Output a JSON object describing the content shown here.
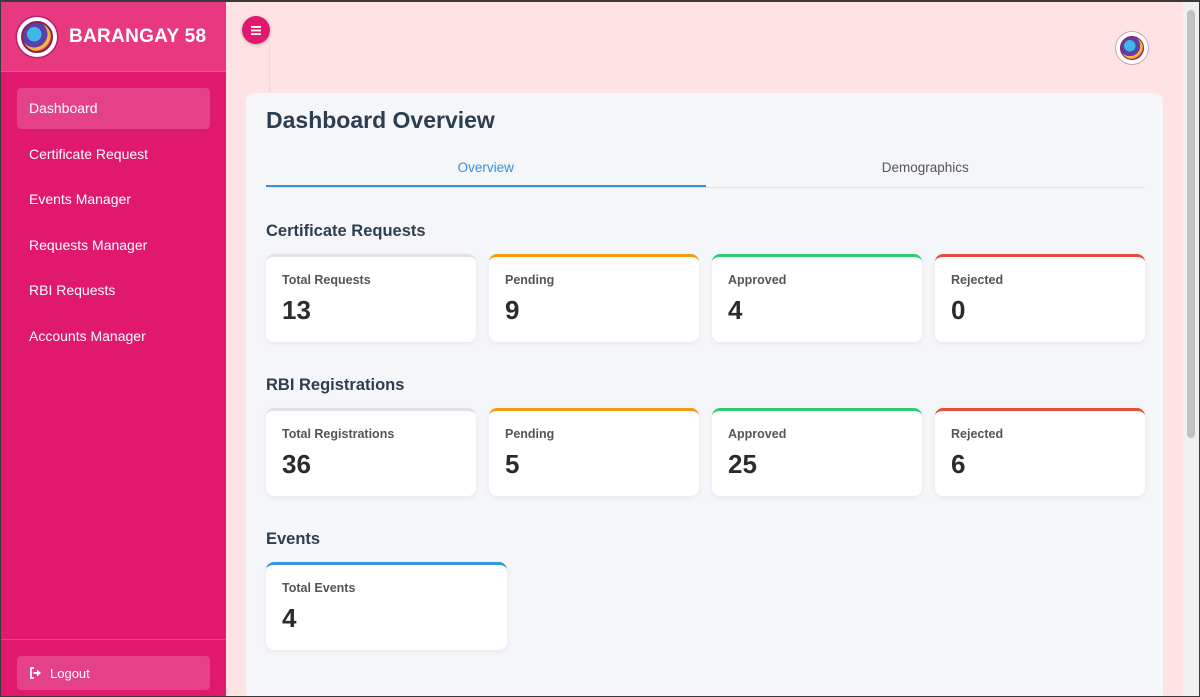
{
  "brand": {
    "name": "BARANGAY 58",
    "logo": "barangay-seal"
  },
  "sidebar": {
    "items": [
      {
        "label": "Dashboard",
        "active": true
      },
      {
        "label": "Certificate Request",
        "active": false
      },
      {
        "label": "Events Manager",
        "active": false
      },
      {
        "label": "Requests Manager",
        "active": false
      },
      {
        "label": "RBI Requests",
        "active": false
      },
      {
        "label": "Accounts Manager",
        "active": false
      }
    ],
    "logout_label": "Logout",
    "logout_icon": "logout-icon"
  },
  "header": {
    "toggle_icon": "hamburger-icon",
    "avatar": "barangay-seal"
  },
  "main": {
    "title": "Dashboard Overview",
    "tabs": [
      {
        "label": "Overview",
        "active": true
      },
      {
        "label": "Demographics",
        "active": false
      }
    ],
    "sections": {
      "certificate": {
        "title": "Certificate Requests",
        "cards": [
          {
            "label": "Total Requests",
            "value": "13",
            "color": "#e2e2e2"
          },
          {
            "label": "Pending",
            "value": "9",
            "color": "#f39c12"
          },
          {
            "label": "Approved",
            "value": "4",
            "color": "#2ecc71"
          },
          {
            "label": "Rejected",
            "value": "0",
            "color": "#e74c3c"
          }
        ]
      },
      "rbi": {
        "title": "RBI Registrations",
        "cards": [
          {
            "label": "Total Registrations",
            "value": "36",
            "color": "#e2e2e2"
          },
          {
            "label": "Pending",
            "value": "5",
            "color": "#f39c12"
          },
          {
            "label": "Approved",
            "value": "25",
            "color": "#2ecc71"
          },
          {
            "label": "Rejected",
            "value": "6",
            "color": "#e74c3c"
          }
        ]
      },
      "events": {
        "title": "Events",
        "cards": [
          {
            "label": "Total Events",
            "value": "4",
            "color": "#3498db"
          }
        ]
      }
    }
  },
  "colors": {
    "sidebar": "#e0186e",
    "accent_tab": "#3b8fd8",
    "background": "#ffe2e4"
  }
}
